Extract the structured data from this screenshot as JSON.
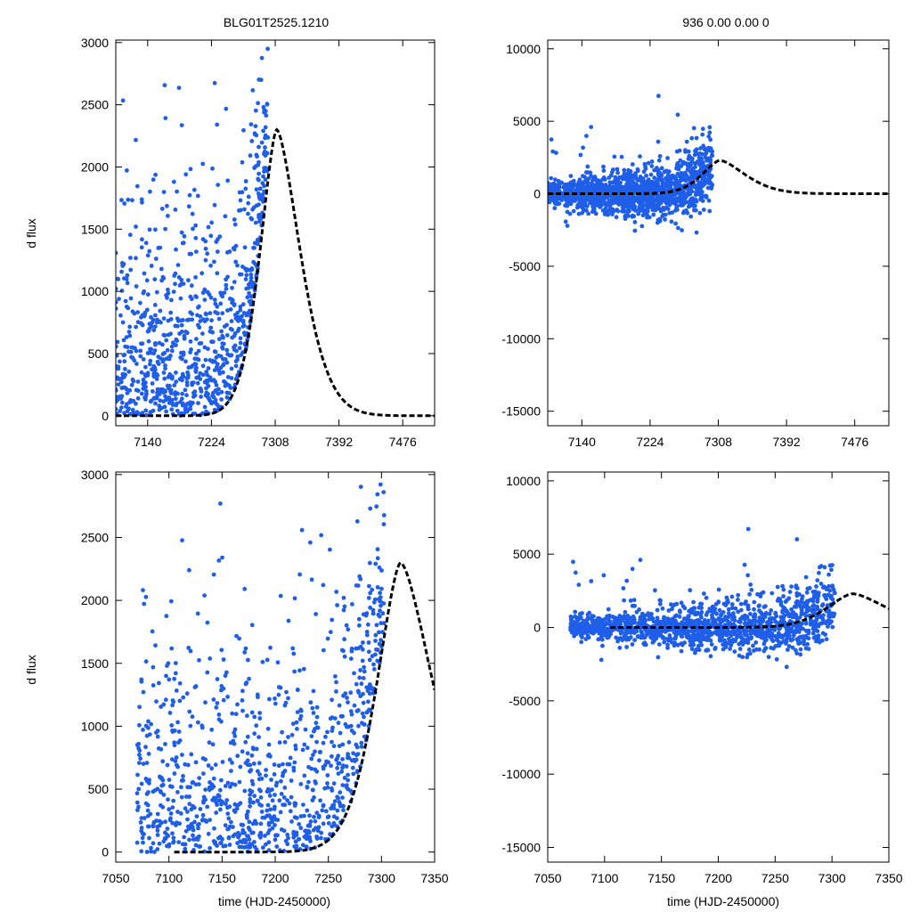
{
  "title_left": "BLG01T2525.1210",
  "title_right": "936  0.00  0.00  0",
  "ylabel": "d flux",
  "xlabel": "time (HJD-2450000)",
  "colors": {
    "points": "#1f5ee8",
    "model": "#000000"
  },
  "chart_data": [
    {
      "id": "top-left",
      "type": "scatter",
      "xlim": [
        7098,
        7518
      ],
      "ylim": [
        -80,
        3020
      ],
      "xticks": [
        7140,
        7224,
        7308,
        7392,
        7476
      ],
      "yticks": [
        0,
        500,
        1000,
        1500,
        2000,
        2500,
        3000
      ],
      "model": {
        "t0": 7310,
        "peak": 2300,
        "rise_tau": 32,
        "fall_tau": 45,
        "xmin": 7098,
        "xmax": 7518
      },
      "obs_range": [
        7098,
        7298
      ],
      "n_points": 900
    },
    {
      "id": "top-right",
      "type": "scatter",
      "xlim": [
        7098,
        7518
      ],
      "ylim": [
        -16000,
        10600
      ],
      "xticks": [
        7140,
        7224,
        7308,
        7392,
        7476
      ],
      "yticks": [
        -15000,
        -10000,
        -5000,
        0,
        5000,
        10000
      ],
      "model": {
        "t0": 7310,
        "peak": 2300,
        "rise_tau": 32,
        "fall_tau": 45,
        "xmin": 7098,
        "xmax": 7518
      },
      "obs_range": [
        7098,
        7300
      ],
      "n_points": 1400
    },
    {
      "id": "bottom-left",
      "type": "scatter",
      "xlim": [
        7050,
        7350
      ],
      "ylim": [
        -80,
        3020
      ],
      "xticks": [
        7050,
        7100,
        7150,
        7200,
        7250,
        7300,
        7350
      ],
      "yticks": [
        0,
        500,
        1000,
        1500,
        2000,
        2500,
        3000
      ],
      "model": {
        "t0": 7318,
        "peak": 2300,
        "rise_tau": 33,
        "fall_tau": 45,
        "xmin": 7105,
        "xmax": 7350
      },
      "obs_range": [
        7070,
        7302
      ],
      "n_points": 1000
    },
    {
      "id": "bottom-right",
      "type": "scatter",
      "xlim": [
        7050,
        7350
      ],
      "ylim": [
        -16000,
        10600
      ],
      "xticks": [
        7050,
        7100,
        7150,
        7200,
        7250,
        7300,
        7350
      ],
      "yticks": [
        -15000,
        -10000,
        -5000,
        0,
        5000,
        10000
      ],
      "model": {
        "t0": 7318,
        "peak": 2300,
        "rise_tau": 33,
        "fall_tau": 45,
        "xmin": 7105,
        "xmax": 7350
      },
      "obs_range": [
        7070,
        7302
      ],
      "n_points": 1400
    }
  ]
}
